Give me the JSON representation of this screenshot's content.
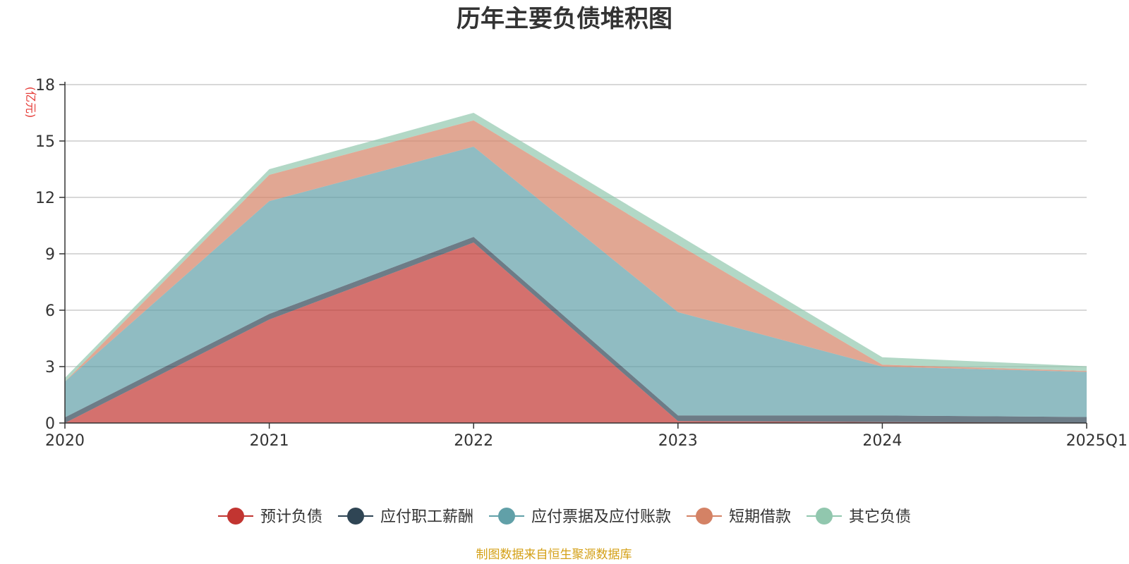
{
  "chart_data": {
    "type": "area",
    "stacked": true,
    "title": "历年主要负债堆积图",
    "unit_label": "(亿元)",
    "categories": [
      "2020",
      "2021",
      "2022",
      "2023",
      "2024",
      "2025Q1"
    ],
    "ylim": [
      0,
      18
    ],
    "yticks": [
      "0",
      "3",
      "6",
      "9",
      "12",
      "15",
      "18"
    ],
    "grid": true,
    "legend_position": "bottom",
    "series": [
      {
        "name": "预计负债",
        "color": "#c23531",
        "values": [
          0.0,
          5.5,
          9.6,
          0.1,
          0.05,
          0.02
        ]
      },
      {
        "name": "应付职工薪酬",
        "color": "#2f4554",
        "values": [
          0.3,
          0.3,
          0.3,
          0.3,
          0.35,
          0.3
        ]
      },
      {
        "name": "应付票据及应付账款",
        "color": "#61a0a8",
        "values": [
          1.9,
          6.0,
          4.8,
          5.5,
          2.6,
          2.4
        ]
      },
      {
        "name": "短期借款",
        "color": "#d48265",
        "values": [
          0.0,
          1.4,
          1.4,
          3.6,
          0.1,
          0.05
        ]
      },
      {
        "name": "其它负债",
        "color": "#91c7ae",
        "values": [
          0.2,
          0.3,
          0.4,
          0.5,
          0.4,
          0.25
        ]
      }
    ],
    "source": "制图数据来自恒生聚源数据库"
  }
}
